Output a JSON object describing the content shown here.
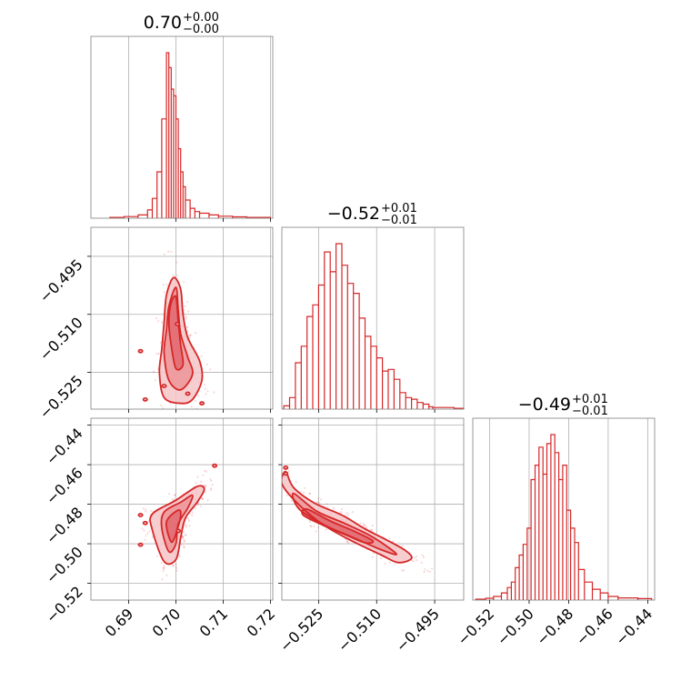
{
  "chart_data": {
    "type": "corner",
    "color": "#d62728",
    "grid": true,
    "parameters": [
      {
        "title_value": "0.70",
        "title_plus": "+0.00",
        "title_minus": "−0.00",
        "range": [
          0.682,
          0.7205
        ],
        "ticks": [
          0.69,
          0.7,
          0.71,
          0.72
        ],
        "tick_labels": [
          "0.69",
          "0.70",
          "0.71",
          "0.72"
        ],
        "hist_x": [
          0.686,
          0.689,
          0.692,
          0.694,
          0.695,
          0.696,
          0.697,
          0.698,
          0.6985,
          0.699,
          0.6995,
          0.7,
          0.7005,
          0.701,
          0.7015,
          0.702,
          0.703,
          0.704,
          0.705,
          0.707,
          0.709,
          0.712,
          0.715,
          0.72
        ],
        "hist_y": [
          0.005,
          0.01,
          0.02,
          0.05,
          0.12,
          0.28,
          0.6,
          1.0,
          0.91,
          0.78,
          0.74,
          0.6,
          0.42,
          0.28,
          0.19,
          0.11,
          0.06,
          0.04,
          0.03,
          0.02,
          0.012,
          0.008,
          0.005,
          0.0
        ]
      },
      {
        "title_value": "−0.52",
        "title_plus": "+0.01",
        "title_minus": "−0.01",
        "range": [
          -0.5345,
          -0.4875
        ],
        "ticks": [
          -0.525,
          -0.51,
          -0.495
        ],
        "tick_labels": [
          "−0.525",
          "−0.510",
          "−0.495"
        ],
        "hist_x": [
          -0.534,
          -0.5325,
          -0.531,
          -0.5295,
          -0.528,
          -0.5265,
          -0.525,
          -0.5235,
          -0.522,
          -0.5205,
          -0.519,
          -0.5175,
          -0.516,
          -0.5145,
          -0.513,
          -0.5115,
          -0.51,
          -0.5085,
          -0.507,
          -0.5055,
          -0.504,
          -0.5025,
          -0.501,
          -0.4995,
          -0.498,
          -0.4965,
          -0.4955,
          -0.49,
          -0.4875
        ],
        "hist_y": [
          0.02,
          0.07,
          0.28,
          0.38,
          0.56,
          0.63,
          0.75,
          0.95,
          0.83,
          1.0,
          0.87,
          0.76,
          0.7,
          0.55,
          0.44,
          0.38,
          0.31,
          0.23,
          0.24,
          0.18,
          0.1,
          0.07,
          0.06,
          0.04,
          0.03,
          0.015,
          0.01,
          0.005,
          0.0
        ]
      },
      {
        "title_value": "−0.49",
        "title_plus": "+0.01",
        "title_minus": "−0.01",
        "range": [
          -0.5285,
          -0.4365
        ],
        "ticks": [
          -0.52,
          -0.5,
          -0.48,
          -0.46,
          -0.44
        ],
        "tick_labels": [
          "−0.52",
          "−0.50",
          "−0.48",
          "−0.46",
          "−0.44"
        ],
        "hist_x": [
          -0.527,
          -0.522,
          -0.518,
          -0.514,
          -0.511,
          -0.509,
          -0.507,
          -0.505,
          -0.503,
          -0.501,
          -0.499,
          -0.497,
          -0.495,
          -0.493,
          -0.491,
          -0.489,
          -0.487,
          -0.485,
          -0.483,
          -0.481,
          -0.479,
          -0.477,
          -0.475,
          -0.472,
          -0.468,
          -0.464,
          -0.46,
          -0.455,
          -0.445,
          -0.438
        ],
        "hist_y": [
          0.005,
          0.01,
          0.02,
          0.04,
          0.07,
          0.1,
          0.18,
          0.25,
          0.31,
          0.4,
          0.67,
          0.75,
          0.85,
          0.7,
          0.87,
          0.92,
          0.82,
          0.67,
          0.75,
          0.5,
          0.4,
          0.32,
          0.17,
          0.1,
          0.06,
          0.04,
          0.02,
          0.012,
          0.008,
          0.0
        ]
      }
    ],
    "contours": [
      {
        "row": 1,
        "col": 0,
        "levels": [
          [
            [
              0.6975,
              -0.5315
            ],
            [
              0.6965,
              -0.525
            ],
            [
              0.697,
              -0.519
            ],
            [
              0.6975,
              -0.512
            ],
            [
              0.698,
              -0.505
            ],
            [
              0.6995,
              -0.5005
            ],
            [
              0.701,
              -0.5035
            ],
            [
              0.7015,
              -0.51
            ],
            [
              0.7025,
              -0.516
            ],
            [
              0.705,
              -0.522
            ],
            [
              0.7055,
              -0.527
            ],
            [
              0.7035,
              -0.532
            ],
            [
              0.701,
              -0.533
            ]
          ],
          [
            [
              0.6985,
              -0.527
            ],
            [
              0.6975,
              -0.52
            ],
            [
              0.698,
              -0.514
            ],
            [
              0.6985,
              -0.508
            ],
            [
              0.7,
              -0.503
            ],
            [
              0.7005,
              -0.509
            ],
            [
              0.701,
              -0.515
            ],
            [
              0.7025,
              -0.521
            ],
            [
              0.7035,
              -0.5255
            ],
            [
              0.701,
              -0.5295
            ]
          ],
          [
            [
              0.699,
              -0.518
            ],
            [
              0.6985,
              -0.512
            ],
            [
              0.699,
              -0.507
            ],
            [
              0.7,
              -0.5055
            ],
            [
              0.7005,
              -0.512
            ],
            [
              0.701,
              -0.518
            ],
            [
              0.7015,
              -0.523
            ],
            [
              0.7,
              -0.524
            ]
          ]
        ],
        "islands": [
          [
            0.6925,
            -0.5195
          ],
          [
            0.6975,
            -0.5285
          ],
          [
            0.6935,
            -0.532
          ],
          [
            0.7055,
            -0.533
          ],
          [
            0.7025,
            -0.5305
          ],
          [
            0.7003,
            -0.5125
          ]
        ]
      },
      {
        "row": 2,
        "col": 0,
        "levels": [
          [
            [
              0.6975,
              -0.509
            ],
            [
              0.695,
              -0.493
            ],
            [
              0.695,
              -0.485
            ],
            [
              0.7,
              -0.478
            ],
            [
              0.7045,
              -0.471
            ],
            [
              0.706,
              -0.4725
            ],
            [
              0.7045,
              -0.479
            ],
            [
              0.702,
              -0.487
            ],
            [
              0.701,
              -0.497
            ],
            [
              0.7,
              -0.508
            ]
          ],
          [
            [
              0.6985,
              -0.504
            ],
            [
              0.697,
              -0.492
            ],
            [
              0.6975,
              -0.484
            ],
            [
              0.701,
              -0.479
            ],
            [
              0.7035,
              -0.4755
            ],
            [
              0.7025,
              -0.482
            ],
            [
              0.7005,
              -0.49
            ],
            [
              0.7,
              -0.5
            ]
          ],
          [
            [
              0.699,
              -0.499
            ],
            [
              0.698,
              -0.489
            ],
            [
              0.7005,
              -0.483
            ],
            [
              0.701,
              -0.486
            ],
            [
              0.7,
              -0.495
            ]
          ]
        ],
        "islands": [
          [
            0.6925,
            -0.4855
          ],
          [
            0.6935,
            -0.4895
          ],
          [
            0.6925,
            -0.5005
          ],
          [
            0.7082,
            -0.4605
          ],
          [
            0.7005,
            -0.4935
          ]
        ]
      },
      {
        "row": 2,
        "col": 1,
        "levels": [
          [
            [
              -0.5335,
              -0.4635
            ],
            [
              -0.5315,
              -0.4715
            ],
            [
              -0.526,
              -0.4795
            ],
            [
              -0.519,
              -0.4855
            ],
            [
              -0.513,
              -0.4925
            ],
            [
              -0.508,
              -0.4975
            ],
            [
              -0.5025,
              -0.5035
            ],
            [
              -0.501,
              -0.5075
            ],
            [
              -0.5045,
              -0.5095
            ],
            [
              -0.509,
              -0.5055
            ],
            [
              -0.5175,
              -0.4975
            ],
            [
              -0.5245,
              -0.4895
            ],
            [
              -0.531,
              -0.4785
            ],
            [
              -0.5345,
              -0.4695
            ]
          ],
          [
            [
              -0.5315,
              -0.4745
            ],
            [
              -0.5255,
              -0.4835
            ],
            [
              -0.5185,
              -0.4895
            ],
            [
              -0.512,
              -0.4955
            ],
            [
              -0.5065,
              -0.5025
            ],
            [
              -0.505,
              -0.5055
            ],
            [
              -0.5095,
              -0.5025
            ],
            [
              -0.5165,
              -0.4965
            ],
            [
              -0.5235,
              -0.4905
            ],
            [
              -0.53,
              -0.4825
            ]
          ],
          [
            [
              -0.528,
              -0.4825
            ],
            [
              -0.522,
              -0.4885
            ],
            [
              -0.516,
              -0.4935
            ],
            [
              -0.511,
              -0.4985
            ],
            [
              -0.513,
              -0.4995
            ],
            [
              -0.518,
              -0.4955
            ],
            [
              -0.524,
              -0.4905
            ],
            [
              -0.529,
              -0.4855
            ]
          ]
        ],
        "islands": [
          [
            -0.5335,
            -0.4615
          ],
          [
            -0.5335,
            -0.4645
          ]
        ]
      }
    ]
  }
}
